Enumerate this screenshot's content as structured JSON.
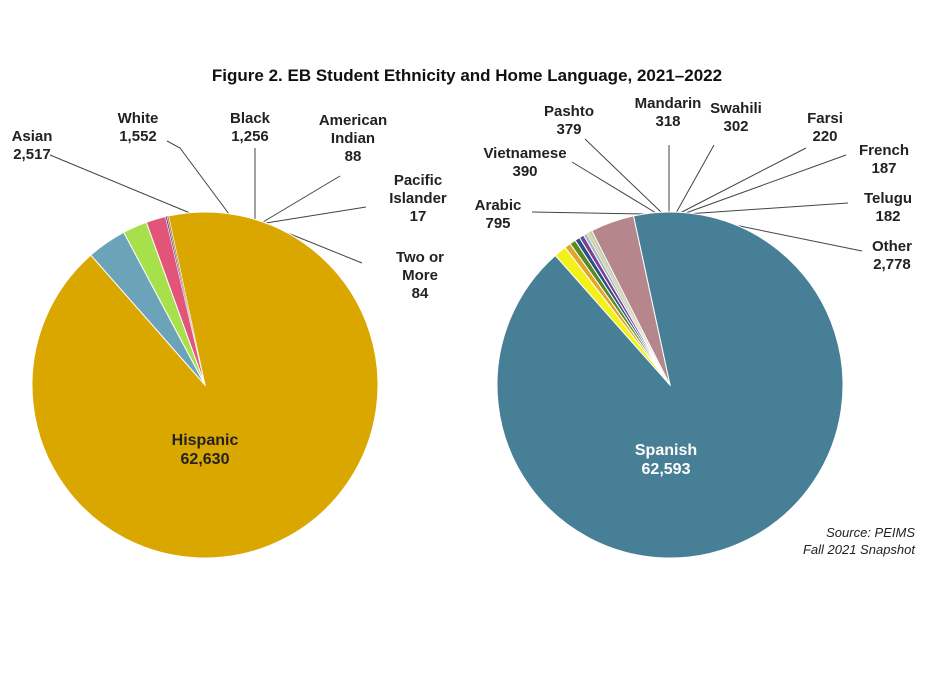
{
  "figure": {
    "title": "Figure 2. EB Student Ethnicity and Home Language, 2021–2022",
    "source_line1": "Source: PEIMS",
    "source_line2": "Fall 2021 Snapshot"
  },
  "chart_data": [
    {
      "type": "pie",
      "title": "",
      "slices": [
        {
          "name": "Hispanic",
          "value": 62630,
          "value_label": "62,630",
          "color": "#DAA600"
        },
        {
          "name": "Asian",
          "value": 2517,
          "value_label": "2,517",
          "color": "#6BA3B8"
        },
        {
          "name": "White",
          "value": 1552,
          "value_label": "1,552",
          "color": "#A6E04A"
        },
        {
          "name": "Black",
          "value": 1256,
          "value_label": "1,256",
          "color": "#E25579"
        },
        {
          "name": "American Indian",
          "value": 88,
          "value_label": "88",
          "color": "#5E3A8C"
        },
        {
          "name": "Pacific Islander",
          "value": 17,
          "value_label": "17",
          "color": "#2E7D32"
        },
        {
          "name": "Two or More",
          "value": 84,
          "value_label": "84",
          "color": "#B07A2A"
        }
      ]
    },
    {
      "type": "pie",
      "title": "",
      "slices": [
        {
          "name": "Spanish",
          "value": 62593,
          "value_label": "62,593",
          "color": "#477F96"
        },
        {
          "name": "Arabic",
          "value": 795,
          "value_label": "795",
          "color": "#F2F21A"
        },
        {
          "name": "Vietnamese",
          "value": 390,
          "value_label": "390",
          "color": "#E2A52A"
        },
        {
          "name": "Pashto",
          "value": 379,
          "value_label": "379",
          "color": "#5A8A22"
        },
        {
          "name": "Mandarin",
          "value": 318,
          "value_label": "318",
          "color": "#2D4E86"
        },
        {
          "name": "Swahili",
          "value": 302,
          "value_label": "302",
          "color": "#7A3F8E"
        },
        {
          "name": "Farsi",
          "value": 220,
          "value_label": "220",
          "color": "#9CB8C8"
        },
        {
          "name": "French",
          "value": 187,
          "value_label": "187",
          "color": "#D8D0A6"
        },
        {
          "name": "Telugu",
          "value": 182,
          "value_label": "182",
          "color": "#BFC9B0"
        },
        {
          "name": "Other",
          "value": 2778,
          "value_label": "2,778",
          "color": "#B5868C"
        }
      ]
    }
  ]
}
